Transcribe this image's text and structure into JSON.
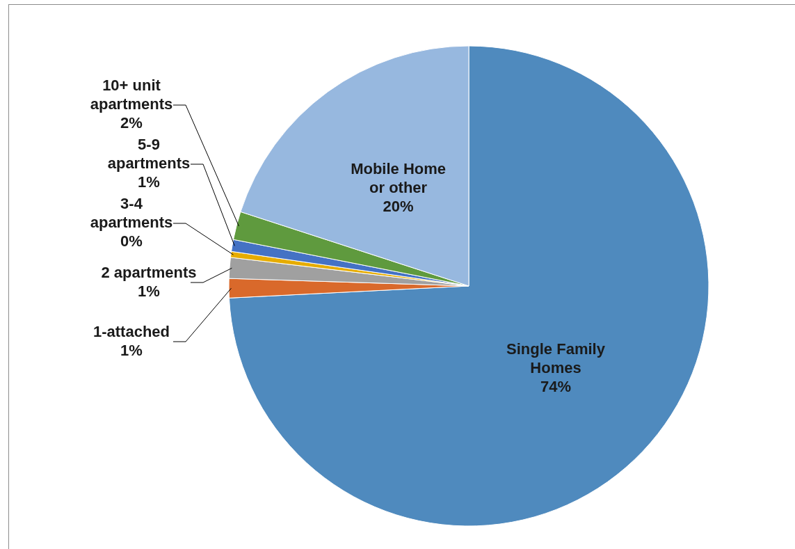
{
  "chart_data": {
    "type": "pie",
    "categories": [
      "Single Family Homes",
      "1-attached",
      "2 apartments",
      "3-4 apartments",
      "5-9 apartments",
      "10+ unit apartments",
      "Mobile Home or other"
    ],
    "values": [
      74.2,
      1.3,
      1.4,
      0.4,
      0.8,
      1.9,
      20.0
    ],
    "value_labels": [
      "74%",
      "1%",
      "1%",
      "0%",
      "1%",
      "2%",
      "20%"
    ],
    "colors": [
      "#4f8abe",
      "#d9692b",
      "#a0a0a0",
      "#e6ac00",
      "#4472c4",
      "#5f9a3e",
      "#97b8df"
    ]
  }
}
